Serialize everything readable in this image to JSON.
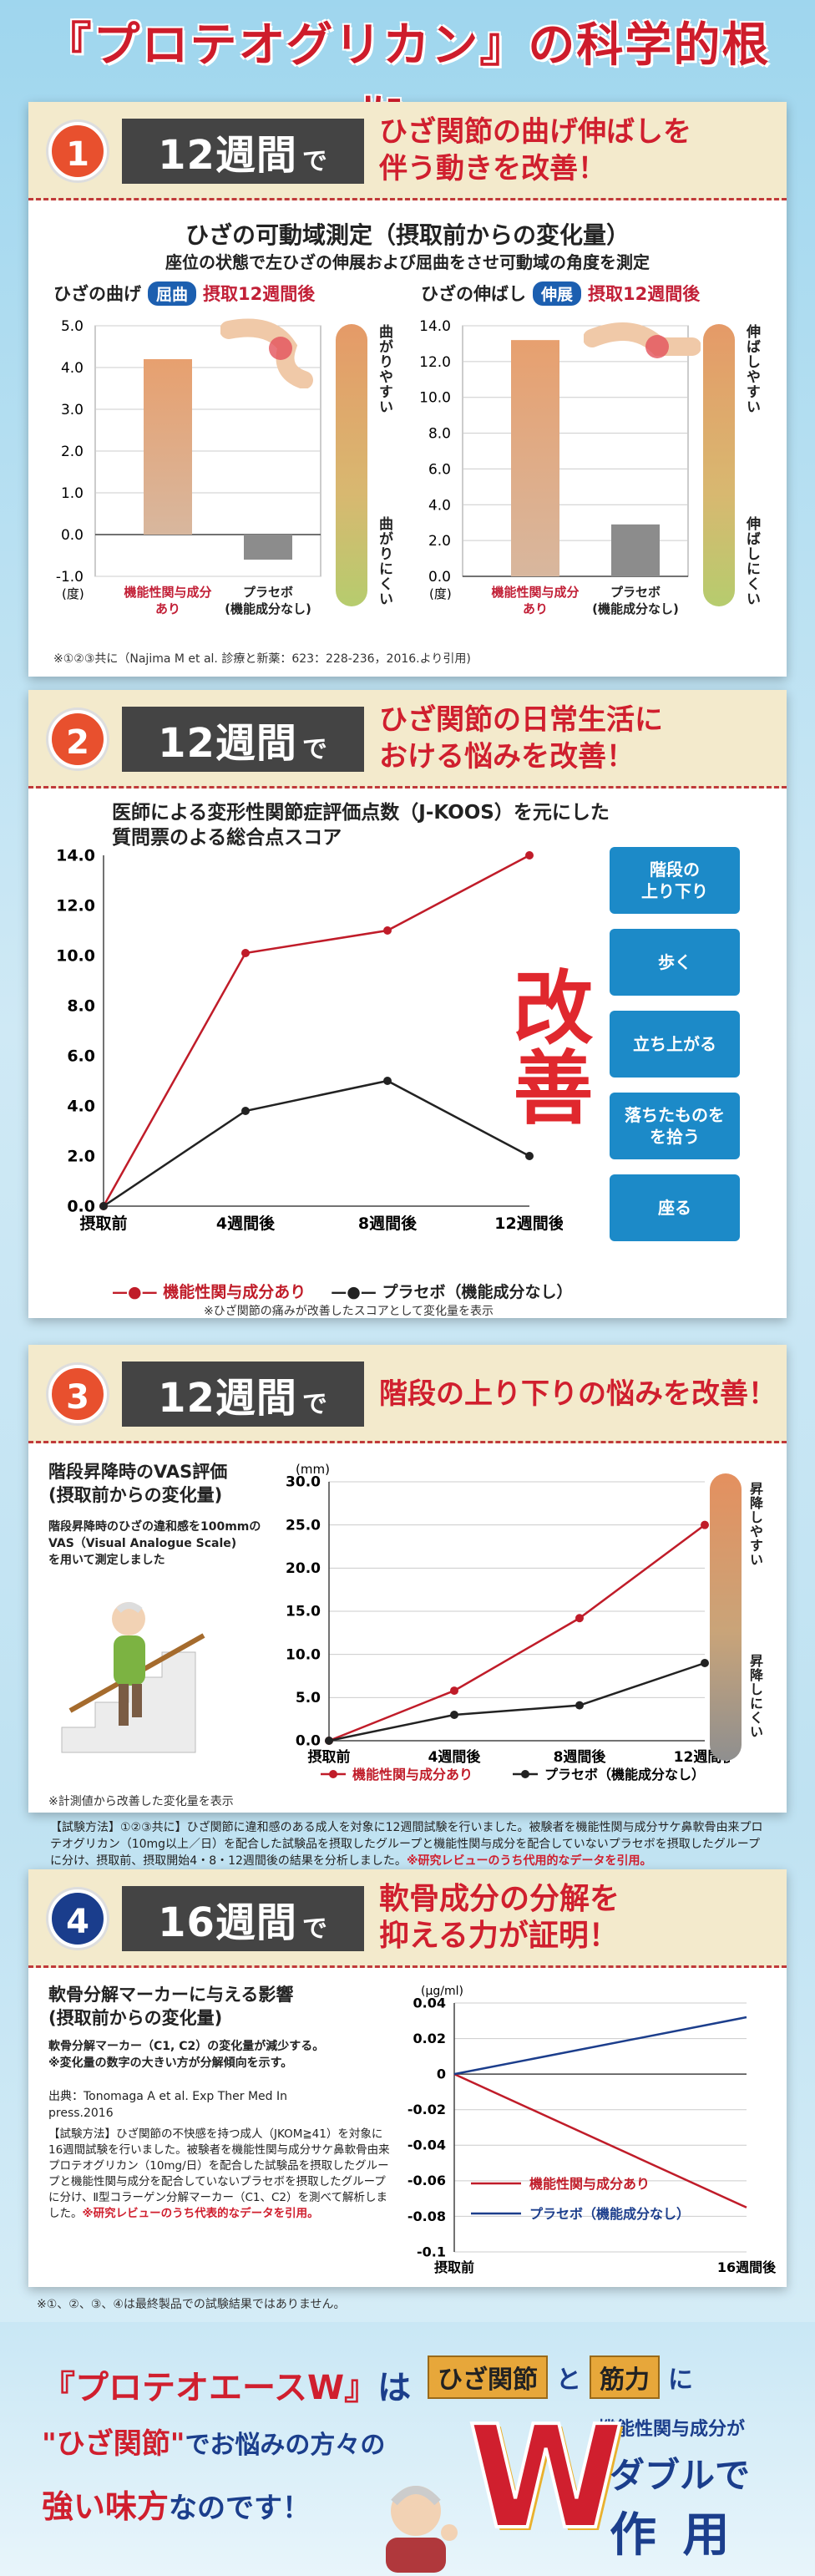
{
  "title": "『プロテオグリカン』の科学的根拠。",
  "sections": [
    {
      "number": "1",
      "weeks": "12週間",
      "de": "で",
      "headline": "ひざ関節の曲げ伸ばしを\n伴う動きを改善！",
      "chart_title": "ひざの可動域測定（摂取前からの変化量）",
      "chart_subtitle": "座位の状態で左ひざの伸展および屈曲をさせ可動域の角度を測定",
      "left_label": "ひざの曲げ",
      "left_badge": "屈曲",
      "left_after": "摂取12週間後",
      "left_top": "曲がりやすい",
      "left_bottom": "曲がりにくい",
      "right_label": "ひざの伸ばし",
      "right_badge": "伸展",
      "right_after": "摂取12週間後",
      "right_top": "伸ばしやすい",
      "right_bottom": "伸ばしにくい",
      "unit": "(度)",
      "cat1": "機能性関与成分\nあり",
      "cat2": "プラセボ\n(機能成分なし)",
      "citation": "※①②③共に（Najima M et al. 診療と新薬：623：228-236，2016.より引用)"
    },
    {
      "number": "2",
      "weeks": "12週間",
      "de": "で",
      "headline": "ひざ関節の日常生活に\nおける悩みを改善！",
      "chart_title": "医師による変形性関節症評価点数（J-KOOS）を元にした\n質問票のよる総合点スコア",
      "kaizen": "改善",
      "buttons": [
        "階段の\n上り下り",
        "歩く",
        "立ち上がる",
        "落ちたものを\nを拾う",
        "座る"
      ],
      "legend_active": "機能性関与成分あり",
      "legend_placebo": "プラセボ（機能成分なし）",
      "note": "※ひざ関節の痛みが改善したスコアとして変化量を表示"
    },
    {
      "number": "3",
      "weeks": "12週間",
      "de": "で",
      "headline": "階段の上り下りの悩みを改善！",
      "left_title": "階段昇降時のVAS評価\n(摂取前からの変化量)",
      "left_text": "階段昇降時のひざの違和感を100mmの\nVAS（Visual Analogue Scale)\nを用いて測定しました",
      "left_note": "※計測値から改善した変化量を表示",
      "unit": "(mm)",
      "top_label": "昇降しやすい",
      "bottom_label": "昇降しにくい",
      "legend_active": "機能性関与成分あり",
      "legend_placebo": "プラセボ（機能成分なし）"
    },
    {
      "number": "4",
      "weeks": "16週間",
      "de": "で",
      "headline": "軟骨成分の分解を\n抑える力が証明！",
      "left_title": "軟骨分解マーカーに与える影響\n(摂取前からの変化量)",
      "left_text": "軟骨分解マーカー（C1, C2）の変化量が減少する。\n※変化量の数字の大きい方が分解傾向を示す。",
      "source": "出典：Tonomaga A et al. Exp Ther Med In\npress.2016",
      "method": "【試験方法】ひざ関節の不快感を持つ成人（JKOM≧41）を対象に16週間試験を行いました。被験者を機能性関与成分サケ鼻軟骨由来プロテオグリカン（10mg/日）を配合した試験品を摂取したグループと機能性関与成分を配合していないプラセボを摂取したグループに分け、Ⅱ型コラーゲン分解マーカー（C1、C2）を測べて解析しました。",
      "method_red": "※研究レビューのうち代表的なデータを引用。",
      "unit": "(μg/ml)",
      "legend_active": "機能性関与成分あり",
      "legend_placebo": "プラセボ（機能成分なし）"
    }
  ],
  "trial_note": "【試験方法】①②③共に】ひざ関節に違和感のある成人を対象に12週間試験を行いました。被験者を機能性関与成分サケ鼻軟骨由来プロテオグリカン（10mg以上／日）を配合した試験品を摂取したグループと機能性関与成分を配合していないプラセボを摂取したグループに分け、摂取前、摂取開始4・8・12週間後の結果を分析しました。",
  "trial_note_red": "※研究レビューのうち代用的なデータを引用。",
  "final_note": "※①、②、③、④は最終製品での試験結果ではありません。",
  "bottom": {
    "line1a": "『プロテオエースW』",
    "line1b": "は",
    "line2a": "\"ひざ関節\"",
    "line2b": "でお悩みの方々の",
    "line3a": "強い味方",
    "line3b": "なのです！",
    "tag1": "ひざ関節",
    "and": "と",
    "tag2": "筋力",
    "ni": "に",
    "sub": "機能性関与成分が",
    "big": "W",
    "daburu": "ダブルで",
    "sayou": "作 用"
  },
  "colors": {
    "red": "#d01f2e",
    "black": "#222222",
    "blue": "#1c3e8c",
    "accent_orange": "#e8502e",
    "bar_gray": "#8c8c8c"
  },
  "chart_data": [
    {
      "type": "bar",
      "title": "ひざの曲げ 屈曲 摂取12週間後",
      "ylabel": "(度)",
      "categories": [
        "機能性関与成分あり",
        "プラセボ(機能成分なし)"
      ],
      "values": [
        4.2,
        -0.6
      ],
      "ylim": [
        -1.0,
        5.0
      ],
      "yticks": [
        "5.0",
        "4.0",
        "3.0",
        "2.0",
        "1.0",
        "0.0",
        "-1.0"
      ]
    },
    {
      "type": "bar",
      "title": "ひざの伸ばし 伸展 摂取12週間後",
      "ylabel": "(度)",
      "categories": [
        "機能性関与成分あり",
        "プラセボ(機能成分なし)"
      ],
      "values": [
        13.2,
        2.9
      ],
      "ylim": [
        0,
        14.0
      ],
      "yticks": [
        "14.0",
        "12.0",
        "10.0",
        "8.0",
        "6.0",
        "4.0",
        "2.0",
        "0.0"
      ]
    },
    {
      "type": "line",
      "title": "医師による変形性関節症評価点数（J-KOOS）を元にした質問票のよる総合点スコア",
      "x": [
        "摂取前",
        "4週間後",
        "8週間後",
        "12週間後"
      ],
      "series": [
        {
          "name": "機能性関与成分あり",
          "values": [
            0.0,
            10.1,
            11.0,
            14.0
          ]
        },
        {
          "name": "プラセボ（機能成分なし）",
          "values": [
            0.0,
            3.8,
            5.0,
            2.0
          ]
        }
      ],
      "ylim": [
        0,
        14.0
      ],
      "yticks": [
        "14.0",
        "12.0",
        "10.0",
        "8.0",
        "6.0",
        "4.0",
        "2.0",
        "0.0"
      ]
    },
    {
      "type": "line",
      "title": "階段昇降時のVAS評価(摂取前からの変化量)",
      "ylabel": "(mm)",
      "x": [
        "摂取前",
        "4週間後",
        "8週間後",
        "12週間後"
      ],
      "series": [
        {
          "name": "機能性関与成分あり",
          "values": [
            0.0,
            5.8,
            14.2,
            25.0
          ]
        },
        {
          "name": "プラセボ（機能成分なし）",
          "values": [
            0.0,
            3.0,
            4.1,
            9.0
          ]
        }
      ],
      "ylim": [
        0,
        30.0
      ],
      "yticks": [
        "30.0",
        "25.0",
        "20.0",
        "15.0",
        "10.0",
        "5.0",
        "0.0"
      ]
    },
    {
      "type": "line",
      "title": "軟骨分解マーカーに与える影響(摂取前からの変化量)",
      "ylabel": "(μg/ml)",
      "x": [
        "摂取前",
        "16週間後"
      ],
      "series": [
        {
          "name": "機能性関与成分あり",
          "values": [
            0,
            -0.075
          ]
        },
        {
          "name": "プラセボ（機能成分なし）",
          "values": [
            0,
            0.032
          ]
        }
      ],
      "ylim": [
        -0.1,
        0.04
      ],
      "yticks": [
        "0.04",
        "0.02",
        "0",
        "-0.02",
        "-0.04",
        "-0.06",
        "-0.08",
        "-0.1"
      ]
    }
  ]
}
